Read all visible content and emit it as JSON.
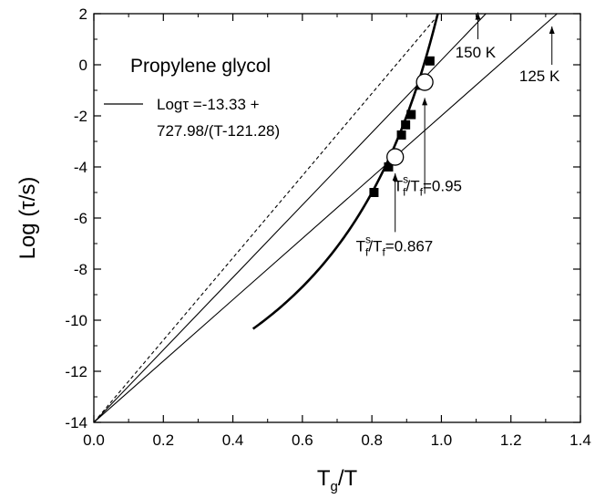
{
  "chart_data": {
    "type": "scatter",
    "title": "",
    "xlabel": {
      "main": "T",
      "sub": "g",
      "rest": "/T"
    },
    "ylabel": "Log (τ/s)",
    "xlim": [
      0.0,
      1.4
    ],
    "ylim": [
      -14,
      2
    ],
    "xticks": [
      "0.0",
      "0.2",
      "0.4",
      "0.6",
      "0.8",
      "1.0",
      "1.2",
      "1.4"
    ],
    "yticks": [
      "-14",
      "-12",
      "-10",
      "-8",
      "-6",
      "-4",
      "-2",
      "0",
      "2"
    ],
    "grid": false,
    "legend": {
      "title": "Propylene glycol",
      "line1": "Logτ =-13.33 +",
      "line2": "727.98/(T-121.28)",
      "placement": "top-left"
    },
    "series": [
      {
        "kind": "markers-square",
        "points": [
          [
            0.806,
            -5.0
          ],
          [
            0.848,
            -4.0
          ],
          [
            0.885,
            -2.75
          ],
          [
            0.897,
            -2.35
          ],
          [
            0.913,
            -1.95
          ],
          [
            0.941,
            -0.8
          ],
          [
            0.967,
            0.15
          ]
        ]
      },
      {
        "kind": "vft-curve",
        "params": {
          "A": -13.33,
          "B": 727.98,
          "T0": 121.28,
          "Tg": 167
        },
        "x_range": [
          0.458,
          0.994
        ]
      },
      {
        "kind": "dashed-line",
        "points": [
          [
            0.0,
            -14.0
          ],
          [
            0.994,
            2.0
          ]
        ]
      },
      {
        "kind": "line",
        "points": [
          [
            0.0,
            -14.0
          ],
          [
            1.128,
            2.0
          ]
        ]
      },
      {
        "kind": "line",
        "points": [
          [
            0.0,
            -14.0
          ],
          [
            1.333,
            2.0
          ]
        ]
      },
      {
        "kind": "markers-circle",
        "points": [
          [
            0.952,
            -0.68
          ],
          [
            0.867,
            -3.61
          ]
        ]
      }
    ],
    "annotations": [
      {
        "name": "150k",
        "text": "150 K",
        "pos": [
          1.04,
          0.28
        ],
        "arrow": [
          [
            1.105,
            1.0
          ],
          [
            1.105,
            2.05
          ]
        ]
      },
      {
        "name": "125k",
        "text": "125 K",
        "pos": [
          1.224,
          -0.64
        ],
        "arrow": [
          [
            1.318,
            0.0
          ],
          [
            1.318,
            1.5
          ]
        ]
      },
      {
        "name": "ratio-095",
        "main": "T",
        "sup": "s",
        "sub": "f",
        "rest": "/T",
        "sub2": "f",
        "tail": "=0.95",
        "pos": [
          0.862,
          -4.95
        ],
        "arrow": [
          [
            0.952,
            -5.05
          ],
          [
            0.952,
            -1.3
          ]
        ]
      },
      {
        "name": "ratio-0867",
        "main": "T",
        "sup": "s",
        "sub": "f",
        "rest": "/T",
        "sub2": "f",
        "tail": "=0.867",
        "pos": [
          0.754,
          -7.3
        ],
        "arrow": [
          [
            0.867,
            -6.55
          ],
          [
            0.867,
            -4.25
          ]
        ]
      }
    ]
  }
}
